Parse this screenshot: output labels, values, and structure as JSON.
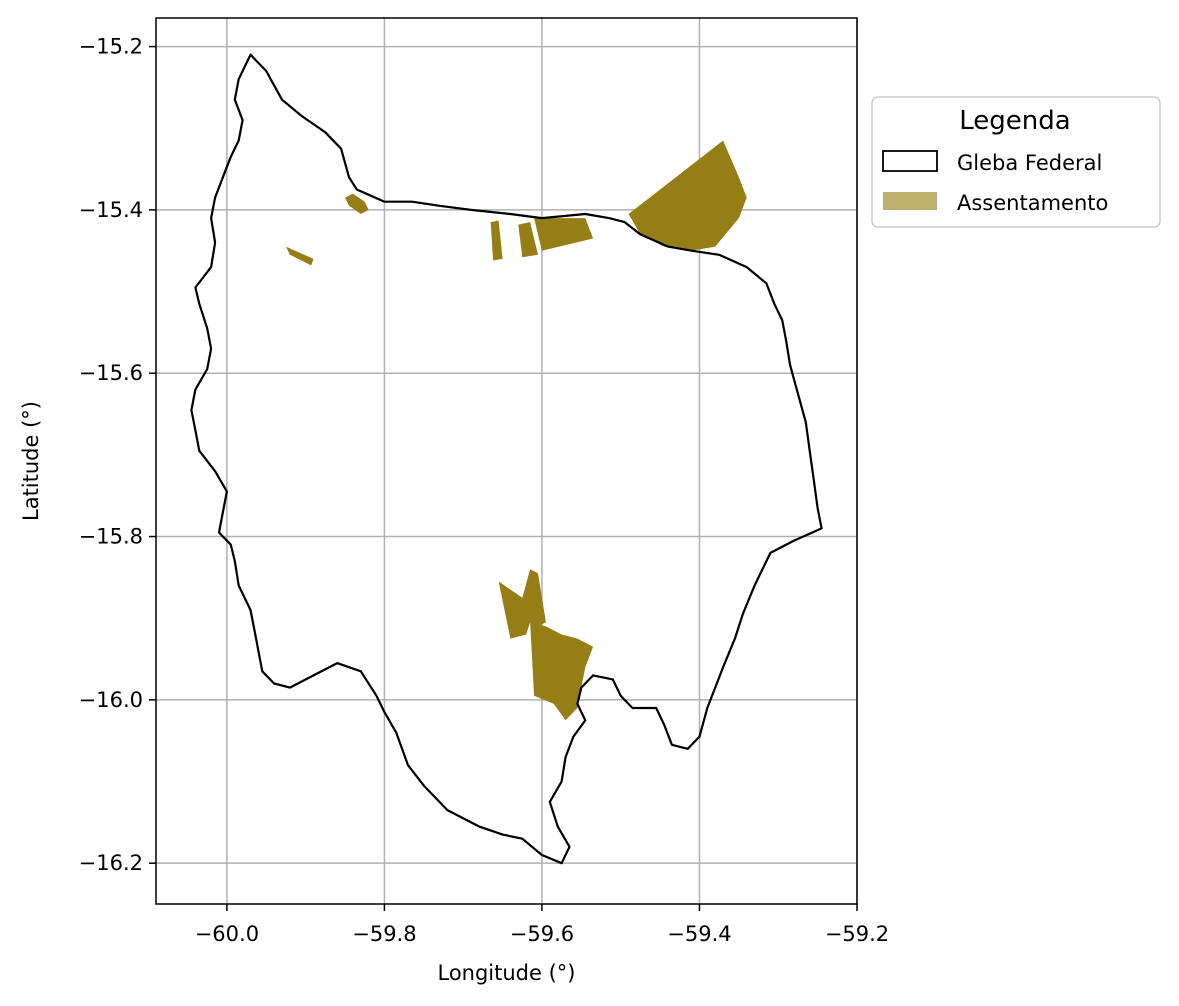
{
  "chart_data": {
    "type": "map",
    "xlabel": "Longitude (°)",
    "ylabel": "Latitude (°)",
    "xlim": [
      -60.09,
      -59.2
    ],
    "ylim": [
      -16.25,
      -15.165
    ],
    "grid": true,
    "x_ticks": [
      -60.0,
      -59.8,
      -59.6,
      -59.4,
      -59.2
    ],
    "x_tick_labels": [
      "−60.0",
      "−59.8",
      "−59.6",
      "−59.4",
      "−59.2"
    ],
    "y_ticks": [
      -15.2,
      -15.4,
      -15.6,
      -15.8,
      -16.0,
      -16.2
    ],
    "y_tick_labels": [
      "−15.2",
      "−15.4",
      "−15.6",
      "−15.8",
      "−16.0",
      "−16.2"
    ],
    "legend": {
      "title": "Legenda",
      "placement": "outside-upper-right",
      "entries": [
        {
          "label": "Gleba Federal",
          "style": "outline",
          "color": "#000000"
        },
        {
          "label": "Assentamento",
          "style": "fill",
          "color": "#bfb06f"
        }
      ]
    },
    "colors": {
      "assentamento_fill": "#957e16",
      "gleba_outline": "#000000",
      "grid": "#b0b0b0"
    },
    "series": [
      {
        "name": "Gleba Federal",
        "type": "outline",
        "coordinates": [
          [
            -59.97,
            -15.21
          ],
          [
            -59.95,
            -15.23
          ],
          [
            -59.93,
            -15.265
          ],
          [
            -59.905,
            -15.285
          ],
          [
            -59.875,
            -15.305
          ],
          [
            -59.855,
            -15.325
          ],
          [
            -59.845,
            -15.36
          ],
          [
            -59.835,
            -15.375
          ],
          [
            -59.8,
            -15.39
          ],
          [
            -59.765,
            -15.39
          ],
          [
            -59.73,
            -15.395
          ],
          [
            -59.69,
            -15.4
          ],
          [
            -59.64,
            -15.405
          ],
          [
            -59.6,
            -15.41
          ],
          [
            -59.545,
            -15.405
          ],
          [
            -59.515,
            -15.41
          ],
          [
            -59.495,
            -15.415
          ],
          [
            -59.475,
            -15.43
          ],
          [
            -59.44,
            -15.445
          ],
          [
            -59.41,
            -15.45
          ],
          [
            -59.375,
            -15.455
          ],
          [
            -59.34,
            -15.47
          ],
          [
            -59.315,
            -15.49
          ],
          [
            -59.305,
            -15.515
          ],
          [
            -59.295,
            -15.535
          ],
          [
            -59.29,
            -15.56
          ],
          [
            -59.285,
            -15.59
          ],
          [
            -59.275,
            -15.625
          ],
          [
            -59.265,
            -15.66
          ],
          [
            -59.26,
            -15.695
          ],
          [
            -59.255,
            -15.73
          ],
          [
            -59.25,
            -15.765
          ],
          [
            -59.245,
            -15.79
          ],
          [
            -59.28,
            -15.805
          ],
          [
            -59.31,
            -15.82
          ],
          [
            -59.33,
            -15.86
          ],
          [
            -59.345,
            -15.895
          ],
          [
            -59.355,
            -15.925
          ],
          [
            -59.37,
            -15.96
          ],
          [
            -59.38,
            -15.985
          ],
          [
            -59.39,
            -16.01
          ],
          [
            -59.4,
            -16.045
          ],
          [
            -59.415,
            -16.06
          ],
          [
            -59.435,
            -16.055
          ],
          [
            -59.445,
            -16.03
          ],
          [
            -59.455,
            -16.01
          ],
          [
            -59.485,
            -16.01
          ],
          [
            -59.5,
            -15.995
          ],
          [
            -59.51,
            -15.975
          ],
          [
            -59.535,
            -15.97
          ],
          [
            -59.55,
            -15.985
          ],
          [
            -59.555,
            -16.005
          ],
          [
            -59.545,
            -16.025
          ],
          [
            -59.56,
            -16.045
          ],
          [
            -59.57,
            -16.07
          ],
          [
            -59.575,
            -16.1
          ],
          [
            -59.59,
            -16.125
          ],
          [
            -59.58,
            -16.155
          ],
          [
            -59.565,
            -16.18
          ],
          [
            -59.575,
            -16.2
          ],
          [
            -59.6,
            -16.19
          ],
          [
            -59.625,
            -16.17
          ],
          [
            -59.65,
            -16.165
          ],
          [
            -59.68,
            -16.155
          ],
          [
            -59.72,
            -16.135
          ],
          [
            -59.75,
            -16.105
          ],
          [
            -59.77,
            -16.08
          ],
          [
            -59.785,
            -16.04
          ],
          [
            -59.8,
            -16.015
          ],
          [
            -59.81,
            -15.995
          ],
          [
            -59.83,
            -15.965
          ],
          [
            -59.86,
            -15.955
          ],
          [
            -59.89,
            -15.97
          ],
          [
            -59.92,
            -15.985
          ],
          [
            -59.94,
            -15.98
          ],
          [
            -59.955,
            -15.965
          ],
          [
            -59.96,
            -15.94
          ],
          [
            -59.965,
            -15.915
          ],
          [
            -59.97,
            -15.89
          ],
          [
            -59.985,
            -15.86
          ],
          [
            -59.99,
            -15.83
          ],
          [
            -59.995,
            -15.81
          ],
          [
            -60.01,
            -15.795
          ],
          [
            -60.005,
            -15.77
          ],
          [
            -60.0,
            -15.745
          ],
          [
            -60.015,
            -15.72
          ],
          [
            -60.035,
            -15.695
          ],
          [
            -60.04,
            -15.67
          ],
          [
            -60.045,
            -15.645
          ],
          [
            -60.04,
            -15.62
          ],
          [
            -60.025,
            -15.595
          ],
          [
            -60.02,
            -15.57
          ],
          [
            -60.025,
            -15.545
          ],
          [
            -60.035,
            -15.515
          ],
          [
            -60.04,
            -15.495
          ],
          [
            -60.02,
            -15.47
          ],
          [
            -60.015,
            -15.44
          ],
          [
            -60.02,
            -15.41
          ],
          [
            -60.015,
            -15.385
          ],
          [
            -60.005,
            -15.36
          ],
          [
            -59.995,
            -15.335
          ],
          [
            -59.985,
            -15.315
          ],
          [
            -59.98,
            -15.29
          ],
          [
            -59.99,
            -15.265
          ],
          [
            -59.985,
            -15.24
          ],
          [
            -59.97,
            -15.21
          ]
        ]
      },
      {
        "name": "Assentamento",
        "type": "fill",
        "polygons": [
          [
            [
              -59.85,
              -15.385
            ],
            [
              -59.84,
              -15.38
            ],
            [
              -59.825,
              -15.39
            ],
            [
              -59.82,
              -15.4
            ],
            [
              -59.83,
              -15.405
            ],
            [
              -59.845,
              -15.395
            ]
          ],
          [
            [
              -59.925,
              -15.445
            ],
            [
              -59.89,
              -15.46
            ],
            [
              -59.893,
              -15.468
            ],
            [
              -59.92,
              -15.455
            ]
          ],
          [
            [
              -59.665,
              -15.415
            ],
            [
              -59.655,
              -15.413
            ],
            [
              -59.65,
              -15.46
            ],
            [
              -59.662,
              -15.462
            ]
          ],
          [
            [
              -59.63,
              -15.418
            ],
            [
              -59.615,
              -15.415
            ],
            [
              -59.605,
              -15.455
            ],
            [
              -59.625,
              -15.458
            ]
          ],
          [
            [
              -59.61,
              -15.41
            ],
            [
              -59.545,
              -15.41
            ],
            [
              -59.535,
              -15.435
            ],
            [
              -59.6,
              -15.45
            ]
          ],
          [
            [
              -59.49,
              -15.405
            ],
            [
              -59.37,
              -15.315
            ],
            [
              -59.35,
              -15.36
            ],
            [
              -59.34,
              -15.385
            ],
            [
              -59.35,
              -15.41
            ],
            [
              -59.38,
              -15.445
            ],
            [
              -59.41,
              -15.45
            ],
            [
              -59.445,
              -15.445
            ],
            [
              -59.475,
              -15.43
            ]
          ],
          [
            [
              -59.655,
              -15.855
            ],
            [
              -59.625,
              -15.875
            ],
            [
              -59.615,
              -15.84
            ],
            [
              -59.605,
              -15.845
            ],
            [
              -59.595,
              -15.905
            ],
            [
              -59.605,
              -15.91
            ],
            [
              -59.615,
              -15.905
            ],
            [
              -59.62,
              -15.92
            ],
            [
              -59.64,
              -15.925
            ]
          ],
          [
            [
              -59.615,
              -15.905
            ],
            [
              -59.61,
              -15.995
            ],
            [
              -59.585,
              -16.005
            ],
            [
              -59.57,
              -16.025
            ],
            [
              -59.555,
              -16.01
            ],
            [
              -59.55,
              -15.985
            ],
            [
              -59.545,
              -15.96
            ],
            [
              -59.535,
              -15.935
            ],
            [
              -59.555,
              -15.925
            ],
            [
              -59.575,
              -15.92
            ],
            [
              -59.595,
              -15.91
            ]
          ]
        ]
      }
    ]
  }
}
